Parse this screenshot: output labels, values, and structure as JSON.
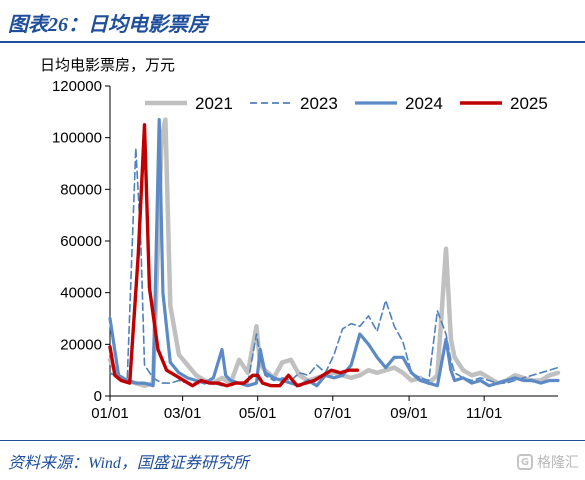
{
  "figure": {
    "title": "图表26：日均电影票房",
    "unit_label": "日均电影票房，万元",
    "source": "资料来源：Wind，国盛证券研究所",
    "watermark": "格隆汇"
  },
  "colors": {
    "title_blue": "#1f4e9c",
    "s2021": "#c0c0c0",
    "s2023": "#4f81bd",
    "s2024": "#5b8ac6",
    "s2025": "#c00000"
  },
  "chart_data": {
    "type": "line",
    "x_unit": "day of year (MM/DD)",
    "xlim": [
      "01/01",
      "12/31"
    ],
    "ylim": [
      0,
      120000
    ],
    "yticks": [
      0,
      20000,
      40000,
      60000,
      80000,
      100000,
      120000
    ],
    "ytick_labels": [
      "0",
      "20000",
      "40000",
      "60000",
      "80000",
      "100000",
      "120000"
    ],
    "xticks": [
      "01/01",
      "03/01",
      "05/01",
      "07/01",
      "09/01",
      "11/01"
    ],
    "grid": false,
    "legend": "top",
    "series": [
      {
        "name": "2021",
        "style": "solid",
        "x": [
          "01/01",
          "01/08",
          "01/15",
          "01/22",
          "01/29",
          "02/05",
          "02/12",
          "02/15",
          "02/19",
          "02/26",
          "03/05",
          "03/12",
          "03/19",
          "03/26",
          "04/02",
          "04/09",
          "04/16",
          "04/23",
          "04/30",
          "05/03",
          "05/07",
          "05/14",
          "05/21",
          "05/28",
          "06/04",
          "06/11",
          "06/18",
          "06/25",
          "07/02",
          "07/09",
          "07/16",
          "07/23",
          "07/30",
          "08/06",
          "08/13",
          "08/20",
          "08/27",
          "09/03",
          "09/10",
          "09/17",
          "09/24",
          "10/01",
          "10/05",
          "10/08",
          "10/15",
          "10/22",
          "10/29",
          "11/05",
          "11/12",
          "11/19",
          "11/26",
          "12/03",
          "12/10",
          "12/17",
          "12/24",
          "12/31"
        ],
        "y": [
          14000,
          7000,
          6000,
          5000,
          4000,
          5000,
          100000,
          107000,
          35000,
          16000,
          12000,
          8000,
          6000,
          5000,
          7000,
          5000,
          14000,
          9000,
          27000,
          12000,
          10000,
          7000,
          13000,
          14000,
          8000,
          6000,
          7000,
          8000,
          9000,
          8000,
          7000,
          8000,
          10000,
          9000,
          10000,
          11000,
          9000,
          6000,
          7000,
          5000,
          8000,
          57000,
          22000,
          15000,
          10000,
          8000,
          9000,
          7000,
          5000,
          6000,
          8000,
          7000,
          6000,
          6000,
          8000,
          9000
        ]
      },
      {
        "name": "2023",
        "style": "dashed",
        "x": [
          "01/01",
          "01/08",
          "01/15",
          "01/22",
          "01/26",
          "01/29",
          "02/05",
          "02/12",
          "02/19",
          "02/26",
          "03/05",
          "03/12",
          "03/19",
          "03/26",
          "04/02",
          "04/09",
          "04/16",
          "04/23",
          "04/30",
          "05/03",
          "05/07",
          "05/14",
          "05/21",
          "05/28",
          "06/04",
          "06/11",
          "06/18",
          "06/25",
          "07/02",
          "07/09",
          "07/16",
          "07/23",
          "07/30",
          "08/06",
          "08/13",
          "08/20",
          "08/27",
          "09/03",
          "09/10",
          "09/17",
          "09/24",
          "10/01",
          "10/05",
          "10/08",
          "10/15",
          "10/22",
          "10/29",
          "11/05",
          "11/12",
          "11/19",
          "11/26",
          "12/03",
          "12/10",
          "12/17",
          "12/24",
          "12/31"
        ],
        "y": [
          9000,
          7000,
          6000,
          96000,
          60000,
          12000,
          7000,
          5000,
          5000,
          6000,
          5000,
          5000,
          6000,
          5000,
          4000,
          4000,
          5000,
          5000,
          24000,
          15000,
          8000,
          6000,
          7000,
          6000,
          9000,
          8000,
          12000,
          9000,
          16000,
          26000,
          28000,
          27000,
          31000,
          25000,
          37000,
          27000,
          21000,
          9000,
          7000,
          6000,
          33000,
          24000,
          14000,
          9000,
          7000,
          6000,
          7000,
          6000,
          5000,
          5000,
          6000,
          7000,
          8000,
          9000,
          10000,
          11000
        ]
      },
      {
        "name": "2024",
        "style": "solid",
        "x": [
          "01/01",
          "01/08",
          "01/15",
          "01/22",
          "01/29",
          "02/05",
          "02/10",
          "02/13",
          "02/19",
          "02/26",
          "03/05",
          "03/12",
          "03/19",
          "03/26",
          "04/02",
          "04/05",
          "04/09",
          "04/16",
          "04/23",
          "04/30",
          "05/03",
          "05/07",
          "05/14",
          "05/21",
          "05/28",
          "06/04",
          "06/11",
          "06/18",
          "06/25",
          "07/02",
          "07/09",
          "07/16",
          "07/23",
          "07/30",
          "08/06",
          "08/13",
          "08/20",
          "08/27",
          "09/03",
          "09/10",
          "09/17",
          "09/24",
          "10/01",
          "10/05",
          "10/08",
          "10/15",
          "10/22",
          "10/29",
          "11/05",
          "11/12",
          "11/19",
          "11/26",
          "12/03",
          "12/10",
          "12/17",
          "12/24",
          "12/31"
        ],
        "y": [
          30000,
          8000,
          6000,
          5000,
          5000,
          4000,
          107000,
          40000,
          13000,
          9000,
          7000,
          6000,
          5000,
          7000,
          18000,
          8000,
          6000,
          5000,
          4000,
          5000,
          18000,
          9000,
          7000,
          6000,
          5000,
          4000,
          6000,
          4000,
          8000,
          7000,
          8000,
          12000,
          24000,
          20000,
          15000,
          11000,
          15000,
          15000,
          9000,
          6000,
          5000,
          4000,
          22000,
          10000,
          6000,
          7000,
          5000,
          6000,
          4000,
          5000,
          6000,
          7000,
          6000,
          6000,
          5000,
          6000,
          6000
        ]
      },
      {
        "name": "2025",
        "style": "solid",
        "x": [
          "01/01",
          "01/05",
          "01/10",
          "01/17",
          "01/24",
          "01/29",
          "02/02",
          "02/09",
          "02/16",
          "02/23",
          "03/02",
          "03/09",
          "03/16",
          "03/23",
          "03/30",
          "04/06",
          "04/13",
          "04/20",
          "04/27",
          "05/01",
          "05/05",
          "05/12",
          "05/19",
          "05/26",
          "06/02",
          "06/09",
          "06/16",
          "06/23",
          "06/30",
          "07/07",
          "07/14",
          "07/21"
        ],
        "y": [
          19000,
          8000,
          6000,
          5000,
          55000,
          105000,
          42000,
          18000,
          10000,
          8000,
          6000,
          4000,
          6000,
          5000,
          5000,
          4000,
          5000,
          5000,
          8000,
          8000,
          5000,
          4000,
          4000,
          8000,
          4000,
          5000,
          6000,
          8000,
          10000,
          9000,
          10000,
          10000
        ]
      }
    ]
  }
}
